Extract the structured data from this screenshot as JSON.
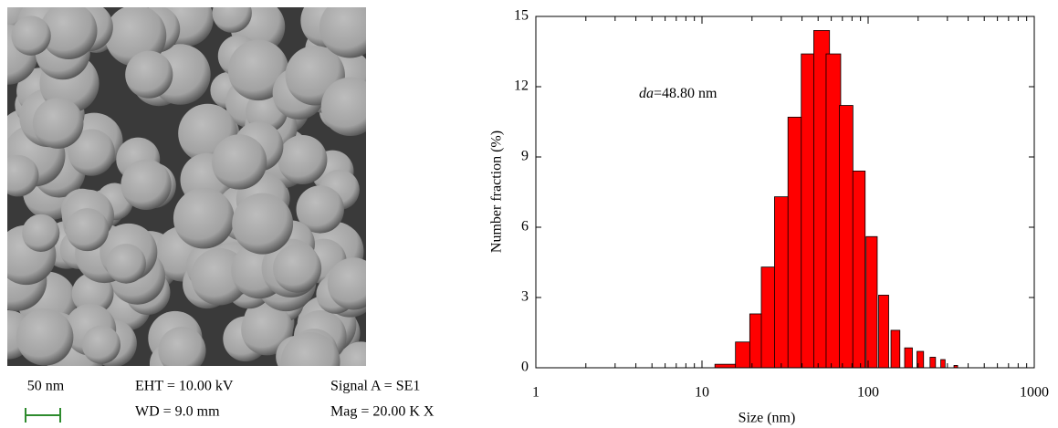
{
  "sem": {
    "scale_bar": "50 nm",
    "eht": "EHT = 10.00 kV",
    "wd": "WD = 9.0 mm",
    "signal": "Signal A = SE1",
    "mag": "Mag = 20.00 K X"
  },
  "chart_data": {
    "type": "bar",
    "x_label": "Size (nm)",
    "y_label": "Number fraction (%)",
    "annotation_var": "da",
    "annotation": "=48.80 nm",
    "x": [
      14.1,
      18.6,
      22.5,
      26.2,
      31.2,
      37.3,
      44.5,
      52.5,
      61.8,
      73.8,
      88.1,
      105,
      124,
      146,
      175,
      206,
      245,
      282,
      337
    ],
    "values": [
      0.15,
      1.1,
      2.3,
      4.3,
      7.3,
      10.7,
      13.4,
      14.4,
      13.4,
      11.2,
      8.4,
      5.6,
      3.1,
      1.6,
      0.85,
      0.7,
      0.45,
      0.35,
      0.1
    ],
    "color": "#ff0000",
    "xscale": "log",
    "xlim": [
      1,
      1000
    ],
    "xticks": [
      1,
      10,
      100,
      1000
    ],
    "xminorticks": [
      2,
      3,
      4,
      5,
      6,
      7,
      8,
      9,
      20,
      30,
      40,
      50,
      60,
      70,
      80,
      90,
      200,
      300,
      400,
      500,
      600,
      700,
      800,
      900
    ],
    "ylim": [
      0,
      15
    ],
    "yticks": [
      0,
      3,
      6,
      9,
      12,
      15
    ]
  }
}
